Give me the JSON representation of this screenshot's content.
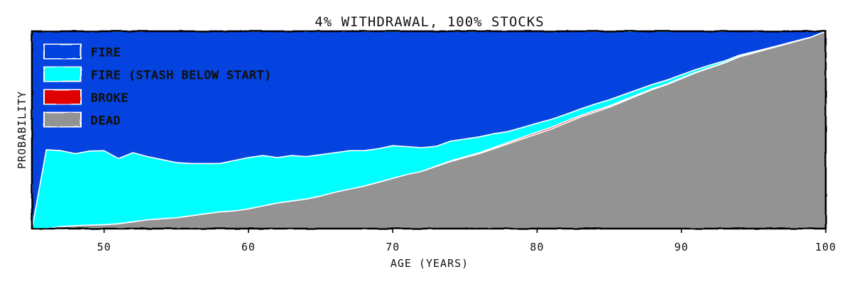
{
  "chart_data": {
    "type": "area",
    "title": "4% WITHDRAWAL, 100% STOCKS",
    "xlabel": "AGE (YEARS)",
    "ylabel": "PROBABILITY",
    "xlim": [
      45,
      100
    ],
    "ylim": [
      0,
      1
    ],
    "xticks": [
      50,
      60,
      70,
      80,
      90,
      100
    ],
    "stacking": "dead, broke, fire (stash below start), fire (bottom to top)",
    "x": [
      45,
      46,
      47,
      48,
      49,
      50,
      51,
      52,
      53,
      54,
      55,
      56,
      57,
      58,
      59,
      60,
      61,
      62,
      63,
      64,
      65,
      66,
      67,
      68,
      69,
      70,
      71,
      72,
      73,
      74,
      75,
      76,
      77,
      78,
      79,
      80,
      81,
      82,
      83,
      84,
      85,
      86,
      87,
      88,
      89,
      90,
      91,
      92,
      93,
      94,
      95,
      96,
      97,
      98,
      99,
      100
    ],
    "series": [
      {
        "name": "DEAD",
        "color": "#939393",
        "values": [
          0.0,
          0.0,
          0.01,
          0.015,
          0.018,
          0.02,
          0.025,
          0.035,
          0.045,
          0.05,
          0.055,
          0.065,
          0.075,
          0.085,
          0.09,
          0.1,
          0.115,
          0.13,
          0.14,
          0.15,
          0.165,
          0.185,
          0.2,
          0.215,
          0.235,
          0.255,
          0.275,
          0.29,
          0.315,
          0.34,
          0.36,
          0.38,
          0.405,
          0.43,
          0.455,
          0.48,
          0.505,
          0.535,
          0.565,
          0.59,
          0.615,
          0.645,
          0.675,
          0.705,
          0.73,
          0.76,
          0.79,
          0.815,
          0.84,
          0.87,
          0.89,
          0.91,
          0.93,
          0.95,
          0.97,
          1.0
        ]
      },
      {
        "name": "BROKE",
        "color": "#e00000",
        "values": [
          0,
          0,
          0,
          0,
          0,
          0,
          0,
          0,
          0,
          0,
          0,
          0,
          0,
          0,
          0,
          0,
          0,
          0,
          0,
          0,
          0,
          0,
          0,
          0,
          0,
          0,
          0,
          0,
          0.002,
          0.003,
          0.004,
          0.005,
          0.006,
          0.007,
          0.008,
          0.009,
          0.009,
          0.009,
          0.008,
          0.008,
          0.007,
          0.006,
          0.005,
          0.004,
          0.003,
          0.003,
          0.002,
          0.002,
          0.001,
          0.001,
          0.001,
          0,
          0,
          0,
          0,
          0
        ]
      },
      {
        "name": "FIRE (STASH BELOW START)",
        "color": "#00ffff",
        "values": [
          0.0,
          0.4,
          0.385,
          0.365,
          0.375,
          0.375,
          0.33,
          0.35,
          0.32,
          0.3,
          0.28,
          0.265,
          0.255,
          0.245,
          0.255,
          0.26,
          0.255,
          0.23,
          0.23,
          0.215,
          0.21,
          0.2,
          0.195,
          0.18,
          0.17,
          0.165,
          0.14,
          0.12,
          0.1,
          0.1,
          0.09,
          0.08,
          0.07,
          0.055,
          0.05,
          0.045,
          0.04,
          0.035,
          0.033,
          0.033,
          0.031,
          0.028,
          0.025,
          0.022,
          0.02,
          0.017,
          0.014,
          0.012,
          0.009,
          0.007,
          0.005,
          0.004,
          0.003,
          0.002,
          0.001,
          0.0
        ]
      },
      {
        "name": "FIRE",
        "color": "#0443e0",
        "values": [
          1.0,
          0.6,
          0.605,
          0.62,
          0.607,
          0.605,
          0.645,
          0.615,
          0.635,
          0.65,
          0.665,
          0.67,
          0.67,
          0.67,
          0.655,
          0.64,
          0.63,
          0.64,
          0.63,
          0.635,
          0.625,
          0.615,
          0.605,
          0.605,
          0.595,
          0.58,
          0.585,
          0.59,
          0.583,
          0.557,
          0.546,
          0.535,
          0.519,
          0.508,
          0.487,
          0.466,
          0.446,
          0.421,
          0.394,
          0.369,
          0.347,
          0.321,
          0.295,
          0.269,
          0.247,
          0.22,
          0.194,
          0.171,
          0.15,
          0.122,
          0.104,
          0.086,
          0.067,
          0.048,
          0.029,
          0.0
        ]
      }
    ],
    "legend": {
      "placement": "top-left",
      "entries": [
        {
          "label": "FIRE",
          "color": "#0443e0"
        },
        {
          "label": "FIRE (STASH BELOW START)",
          "color": "#00ffff"
        },
        {
          "label": "BROKE",
          "color": "#e00000"
        },
        {
          "label": "DEAD",
          "color": "#939393"
        }
      ]
    }
  }
}
